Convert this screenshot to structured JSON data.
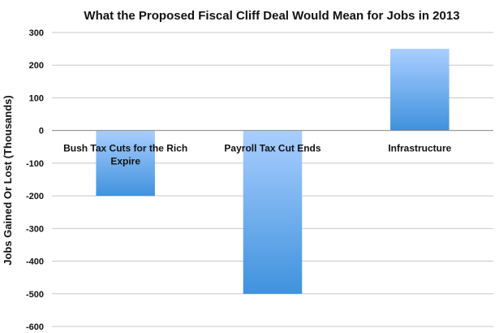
{
  "chart_data": {
    "type": "bar",
    "title": "What the Proposed Fiscal Cliff Deal Would Mean for Jobs in 2013",
    "ylabel": "Jobs Gained Or Lost (Thousands)",
    "xlabel": "",
    "categories": [
      [
        "Bush Tax Cuts for the Rich",
        "Expire"
      ],
      [
        "Payroll Tax Cut Ends"
      ],
      [
        "Infrastructure"
      ]
    ],
    "values": [
      -200,
      -500,
      250
    ],
    "ylim": [
      -600,
      300
    ],
    "yticks": [
      300,
      200,
      100,
      0,
      -100,
      -200,
      -300,
      -400,
      -500,
      -600
    ],
    "grid": true,
    "legend": "none",
    "colors": {
      "bar_top": "#a9ceff",
      "bar_bottom": "#3f92dd",
      "grid": "#c8c8c8",
      "axis": "#8c8c8c"
    }
  }
}
